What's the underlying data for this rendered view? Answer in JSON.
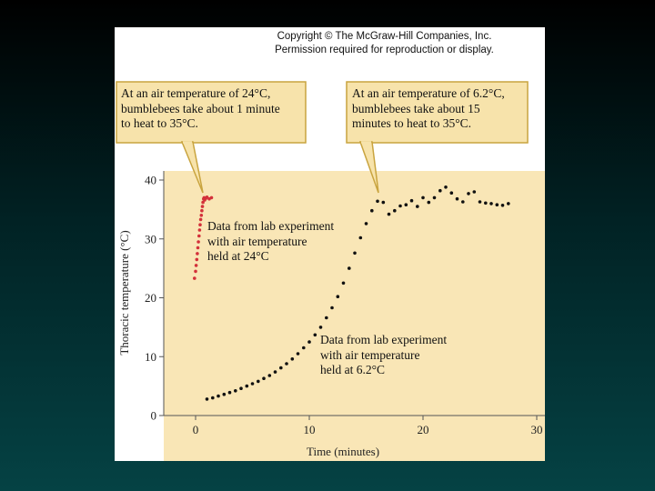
{
  "copyright": {
    "line1": "Copyright © The McGraw-Hill Companies, Inc.",
    "line2": "Permission required for reproduction or display."
  },
  "callouts": {
    "left": {
      "line1": "At an air temperature of 24°C,",
      "line2": "bumblebees take about 1 minute",
      "line3": "to heat to 35°C."
    },
    "right": {
      "line1": "At an air temperature of 6.2°C,",
      "line2": "bumblebees take about 15",
      "line3": "minutes to heat to 35°C."
    }
  },
  "annotations": {
    "lab24": {
      "line1": "Data from lab experiment",
      "line2": "with air temperature",
      "line3": "held at 24°C"
    },
    "lab62": {
      "line1": "Data from lab experiment",
      "line2": "with air temperature",
      "line3": "held at 6.2°C"
    }
  },
  "colors": {
    "plot_background": "#f9e6b6",
    "callout_background": "#f7e3ab",
    "callout_border": "#c9a43f",
    "series_24": "#d3313a",
    "series_62": "#111111"
  },
  "chart_data": {
    "type": "scatter",
    "xlabel": "Time (minutes)",
    "ylabel": "Thoracic temperature (°C)",
    "xlim": [
      -3,
      30
    ],
    "ylim": [
      0,
      41
    ],
    "xticks": [
      0,
      10,
      20,
      30
    ],
    "yticks": [
      0,
      10,
      20,
      30,
      40
    ],
    "grid": false,
    "series": [
      {
        "name": "24°C",
        "x": [
          -0.1,
          0.0,
          0.05,
          0.1,
          0.15,
          0.2,
          0.25,
          0.3,
          0.35,
          0.4,
          0.45,
          0.5,
          0.55,
          0.6,
          0.65,
          0.7,
          0.75,
          0.8,
          0.9,
          1.0,
          1.2,
          1.4
        ],
        "y": [
          23.3,
          24.5,
          25.5,
          26.5,
          27.5,
          28.5,
          29.5,
          30.5,
          31.5,
          32.4,
          33.3,
          34.0,
          34.8,
          35.5,
          36.2,
          36.8,
          37.0,
          36.6,
          36.9,
          37.1,
          36.8,
          37.0
        ]
      },
      {
        "name": "6.2°C",
        "x": [
          1.0,
          1.5,
          2.0,
          2.5,
          3.0,
          3.5,
          4.0,
          4.5,
          5.0,
          5.5,
          6.0,
          6.5,
          7.0,
          7.5,
          8.0,
          8.5,
          9.0,
          9.5,
          10.0,
          10.5,
          11.0,
          11.5,
          12.0,
          12.5,
          13.0,
          13.5,
          14.0,
          14.5,
          15.0,
          15.5,
          16.0,
          16.5,
          17.0,
          17.5,
          18.0,
          18.5,
          19.0,
          19.5,
          20.0,
          20.5,
          21.0,
          21.5,
          22.0,
          22.5,
          23.0,
          23.5,
          24.0,
          24.5,
          25.0,
          25.5,
          26.0,
          26.5,
          27.0,
          27.5
        ],
        "y": [
          2.8,
          3.0,
          3.3,
          3.6,
          3.9,
          4.2,
          4.6,
          5.0,
          5.4,
          5.8,
          6.3,
          6.8,
          7.4,
          8.1,
          8.8,
          9.6,
          10.5,
          11.5,
          12.5,
          13.7,
          15.0,
          16.6,
          18.3,
          20.2,
          22.5,
          25.0,
          27.6,
          30.2,
          32.6,
          34.8,
          36.4,
          36.2,
          34.2,
          34.8,
          35.6,
          35.8,
          36.5,
          35.5,
          37.0,
          36.2,
          37.0,
          38.2,
          38.8,
          37.8,
          36.8,
          36.3,
          37.7,
          38.0,
          36.3,
          36.1,
          36.0,
          35.8,
          35.7,
          36.0
        ]
      }
    ]
  }
}
